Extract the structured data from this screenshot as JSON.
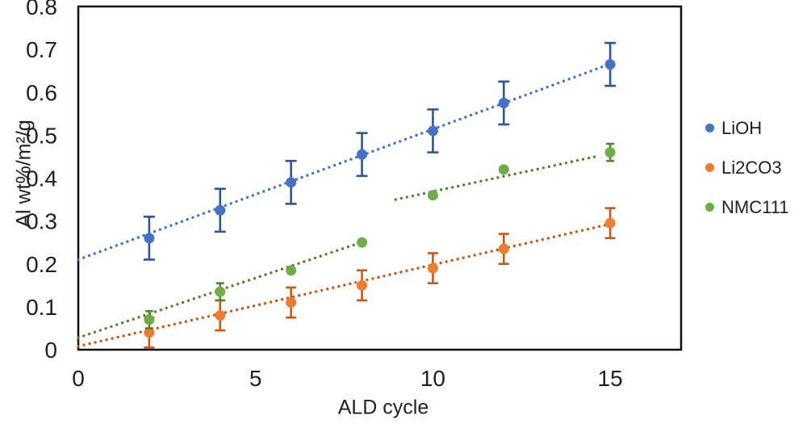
{
  "chart_data": {
    "type": "scatter",
    "title": "",
    "xlabel": "ALD cycle",
    "ylabel": "Al wt%/m²/g",
    "xlim": [
      0,
      17
    ],
    "ylim": [
      0,
      0.8
    ],
    "x_ticks": [
      0,
      5,
      10,
      15
    ],
    "y_ticks": [
      0,
      0.1,
      0.2,
      0.3,
      0.4,
      0.5,
      0.6,
      0.7,
      0.8
    ],
    "grid": false,
    "legend_position": "right-outside",
    "frame_color": "#0d0d0d",
    "text_color": "#1f1f1f",
    "x": [
      2,
      4,
      6,
      8,
      10,
      12,
      15
    ],
    "series": [
      {
        "name": "LiOH",
        "color": "#4472C4",
        "error_color": "#2F5597",
        "values": [
          0.26,
          0.325,
          0.39,
          0.455,
          0.51,
          0.575,
          0.665
        ],
        "errors": [
          0.05,
          0.05,
          0.05,
          0.05,
          0.05,
          0.05,
          0.05
        ]
      },
      {
        "name": "Li2CO3",
        "color": "#ED7D31",
        "error_color": "#C9571B",
        "values": [
          0.04,
          0.08,
          0.11,
          0.15,
          0.19,
          0.235,
          0.295
        ],
        "errors": [
          0.035,
          0.035,
          0.035,
          0.035,
          0.035,
          0.035,
          0.035
        ]
      },
      {
        "name": "NMC111",
        "color": "#70AD47",
        "error_color": "#548235",
        "values": [
          0.07,
          0.135,
          0.185,
          0.25,
          0.36,
          0.42,
          0.46
        ],
        "errors": [
          0.02,
          0.02,
          null,
          null,
          null,
          null,
          0.02
        ]
      }
    ],
    "trendlines": [
      {
        "series": "LiOH",
        "color": "#4472C4",
        "style": "dotted",
        "x1": 0,
        "y1": 0.21,
        "x2": 15,
        "y2": 0.666
      },
      {
        "series": "Li2CO3",
        "color": "#C9571B",
        "style": "dotted",
        "x1": 0,
        "y1": 0.008,
        "x2": 15,
        "y2": 0.293
      },
      {
        "series": "NMC111",
        "color": "#548235",
        "style": "dotted",
        "x1": 0,
        "y1": 0.028,
        "x2": 8.05,
        "y2": 0.252
      },
      {
        "series": "NMC111",
        "color": "#548235",
        "style": "dotted",
        "x1": 8.95,
        "y1": 0.35,
        "x2": 14.7,
        "y2": 0.452
      }
    ]
  },
  "legend": {
    "items": [
      {
        "label": "LiOH"
      },
      {
        "label": "Li2CO3"
      },
      {
        "label": "NMC111"
      }
    ]
  }
}
